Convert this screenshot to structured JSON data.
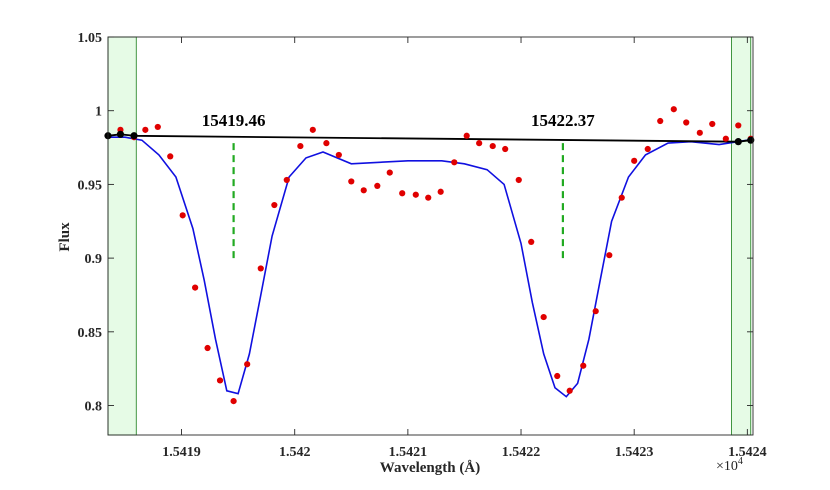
{
  "chart_data": {
    "type": "line",
    "title": "",
    "xlabel": "Wavelength (Å)",
    "ylabel": "Flux",
    "x_exponent_label": "×10",
    "x_exponent_power": "4",
    "xlim": [
      15418.35,
      15424.05
    ],
    "ylim": [
      0.78,
      1.05
    ],
    "xticks": [
      15419,
      15420,
      15421,
      15422,
      15423,
      15424
    ],
    "xtick_labels": [
      "1.5419",
      "1.542",
      "1.5421",
      "1.5422",
      "1.5423",
      "1.5424"
    ],
    "yticks": [
      0.8,
      0.85,
      0.9,
      0.95,
      1.0,
      1.05
    ],
    "ytick_labels": [
      "0.8",
      "0.85",
      "0.9",
      "0.95",
      "1",
      "1.05"
    ],
    "grid": false,
    "continuum_bands": [
      [
        15418.35,
        15418.6
      ],
      [
        15423.86,
        15424.03
      ]
    ],
    "line_markers": [
      {
        "label": "15419.46",
        "x": 15419.46,
        "y_from": 0.9,
        "y_to": 0.98
      },
      {
        "label": "15422.37",
        "x": 15422.37,
        "y_from": 0.9,
        "y_to": 0.98
      }
    ],
    "series": [
      {
        "kind": "observed",
        "color": "#e00000",
        "x": [
          15418.35,
          15418.46,
          15418.58,
          15418.68,
          15418.79,
          15418.9,
          15419.01,
          15419.12,
          15419.23,
          15419.34,
          15419.46,
          15419.58,
          15419.7,
          15419.82,
          15419.93,
          15420.05,
          15420.16,
          15420.28,
          15420.39,
          15420.5,
          15420.61,
          15420.73,
          15420.84,
          15420.95,
          15421.07,
          15421.18,
          15421.29,
          15421.41,
          15421.52,
          15421.63,
          15421.75,
          15421.86,
          15421.98,
          15422.09,
          15422.2,
          15422.32,
          15422.43,
          15422.55,
          15422.66,
          15422.78,
          15422.89,
          15423.0,
          15423.12,
          15423.23,
          15423.35,
          15423.46,
          15423.58,
          15423.69,
          15423.81,
          15423.92,
          15424.03
        ],
        "y": [
          0.983,
          0.987,
          0.982,
          0.987,
          0.989,
          0.969,
          0.929,
          0.88,
          0.839,
          0.817,
          0.803,
          0.828,
          0.893,
          0.936,
          0.953,
          0.976,
          0.987,
          0.978,
          0.97,
          0.952,
          0.946,
          0.949,
          0.958,
          0.944,
          0.943,
          0.941,
          0.945,
          0.965,
          0.983,
          0.978,
          0.976,
          0.974,
          0.953,
          0.911,
          0.86,
          0.82,
          0.81,
          0.827,
          0.864,
          0.902,
          0.941,
          0.966,
          0.974,
          0.993,
          1.001,
          0.992,
          0.985,
          0.991,
          0.981,
          0.99,
          0.981
        ]
      },
      {
        "kind": "model",
        "color": "#1010e0",
        "x": [
          15418.35,
          15418.5,
          15418.65,
          15418.8,
          15418.95,
          15419.1,
          15419.2,
          15419.3,
          15419.4,
          15419.5,
          15419.6,
          15419.7,
          15419.8,
          15419.95,
          15420.1,
          15420.25,
          15420.5,
          15420.75,
          15421.0,
          15421.3,
          15421.5,
          15421.7,
          15421.85,
          15422.0,
          15422.1,
          15422.2,
          15422.3,
          15422.4,
          15422.5,
          15422.6,
          15422.7,
          15422.8,
          15422.95,
          15423.1,
          15423.3,
          15423.5,
          15423.75,
          15424.0,
          15424.05
        ],
        "y": [
          0.982,
          0.982,
          0.98,
          0.97,
          0.955,
          0.92,
          0.885,
          0.845,
          0.81,
          0.808,
          0.835,
          0.875,
          0.915,
          0.955,
          0.968,
          0.972,
          0.964,
          0.965,
          0.966,
          0.966,
          0.964,
          0.96,
          0.95,
          0.91,
          0.87,
          0.835,
          0.812,
          0.806,
          0.815,
          0.845,
          0.885,
          0.925,
          0.955,
          0.97,
          0.978,
          0.979,
          0.977,
          0.98,
          0.981
        ]
      },
      {
        "kind": "continuum",
        "color": "#000000",
        "x": [
          15418.35,
          15418.46,
          15418.58,
          15423.92,
          15424.03
        ],
        "y": [
          0.983,
          0.984,
          0.983,
          0.979,
          0.98
        ]
      }
    ]
  }
}
